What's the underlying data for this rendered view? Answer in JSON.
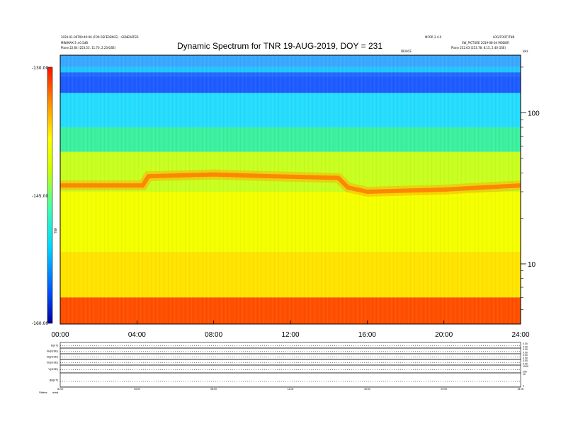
{
  "header": {
    "top_left_line1": "2020-01-06T09:40:00 (FOR REFERENCE) : GENERATED",
    "top_left_line2": "MIN/MAX-3 ±0.5dB",
    "top_left_line3": "Plane   22.64 (253.53, 11.70, 2.23)GSE)",
    "top_right_line1": "MFOR 2.4.0",
    "top_right_line2": "LOG/TOOT/TNR",
    "top_right_line3": "SW_PICTURE 2019-08-04 MODOR",
    "top_right_line4": "Plane   252.63 (253.78, 8.15, 2.40 GSE)",
    "mid_label": "DEVICE",
    "corner_unit": "kHz"
  },
  "title": "Dynamic Spectrum for TNR 19-AUG-2019, DOY = 231",
  "colorbar": {
    "ticks": [
      "-130.00",
      "-145.00",
      "-160.00"
    ],
    "label": "TNR"
  },
  "chart_data": {
    "type": "heatmap",
    "title": "Dynamic Spectrum for TNR 19-AUG-2019, DOY = 231",
    "x_ticks": [
      "00:00",
      "04:00",
      "08:00",
      "12:00",
      "16:00",
      "20:00",
      "24:00"
    ],
    "x_range_hours": [
      0,
      24
    ],
    "y_ticks": [
      "100",
      "10"
    ],
    "y_scale": "log",
    "y_range_khz": [
      4,
      240
    ],
    "color_range": [
      -160,
      -130
    ],
    "colormap": [
      "#0000b0",
      "#0050ff",
      "#00c8ff",
      "#60ff80",
      "#e8ff00",
      "#ffff00",
      "#ff9000",
      "#ff2000"
    ],
    "band_layers": [
      {
        "from_khz": 240,
        "to_khz": 200,
        "color": "#3aa8ff"
      },
      {
        "from_khz": 200,
        "to_khz": 185,
        "color": "#22c6ff"
      },
      {
        "from_khz": 185,
        "to_khz": 175,
        "color": "#1f6bff"
      },
      {
        "from_khz": 175,
        "to_khz": 135,
        "color": "#1e5cff"
      },
      {
        "from_khz": 135,
        "to_khz": 80,
        "color": "#26dcff"
      },
      {
        "from_khz": 80,
        "to_khz": 55,
        "color": "#3cf0a0"
      },
      {
        "from_khz": 55,
        "to_khz": 30,
        "color": "#c8ff20"
      },
      {
        "from_khz": 30,
        "to_khz": 12,
        "color": "#f4ff00"
      },
      {
        "from_khz": 12,
        "to_khz": 6,
        "color": "#ffe400"
      },
      {
        "from_khz": 6,
        "to_khz": 4,
        "color": "#ff5000"
      }
    ],
    "orange_band": [
      {
        "t": 0.0,
        "khz": 33
      },
      {
        "t": 4.3,
        "khz": 33
      },
      {
        "t": 4.6,
        "khz": 38
      },
      {
        "t": 8.0,
        "khz": 39
      },
      {
        "t": 11.0,
        "khz": 38
      },
      {
        "t": 14.5,
        "khz": 37
      },
      {
        "t": 15.0,
        "khz": 32
      },
      {
        "t": 16.0,
        "khz": 30
      },
      {
        "t": 20.0,
        "khz": 31
      },
      {
        "t": 24.0,
        "khz": 33
      }
    ]
  },
  "bottom_panels": {
    "rows": [
      {
        "left": "B(nT)",
        "right_hi": "0.00",
        "right_lo": "0.00"
      },
      {
        "left": "Bx(GSE)",
        "right_hi": "0.00",
        "right_lo": "0.00"
      },
      {
        "left": "By(GSE)",
        "right_hi": "0.00",
        "right_lo": "0.00"
      },
      {
        "left": "Bz(GSE)",
        "right_hi": "0.00",
        "right_lo": "0.00"
      },
      {
        "left": "V(GSE)",
        "right_hi": "1000",
        "right_lo": "200"
      },
      {
        "left": "|B|(nT)",
        "right_hi": "10",
        "right_lo": "0"
      }
    ],
    "x_ticks": [
      "00:00",
      "04:00",
      "08:00",
      "12:00",
      "16:00",
      "20:00",
      "24:00"
    ],
    "footer_left": "Status:",
    "footer_left2": "wind"
  }
}
